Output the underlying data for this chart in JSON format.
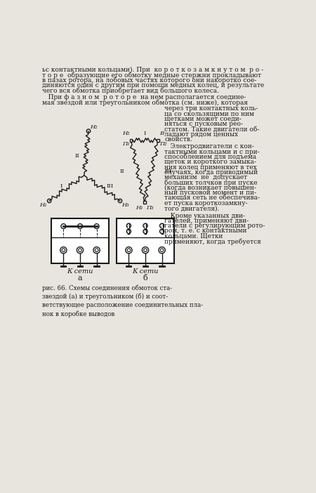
{
  "bg_color": "#e8e4de",
  "line_color": "#1a1a1a",
  "text_color": "#1a1a1a",
  "fig_width": 4.5,
  "fig_height": 7.02,
  "text_lines_top": [
    "ьс контактными кольцами). При  ко р о т к о з а м к н у т о м  р о -",
    "т о р е  образующие его обмотку медные стержни прокладывают",
    "в пазах ротора, на лобовых частях которого они накоротко сое-",
    "диняются один с другим при помощи медных колец, и результате",
    "чего вся обмотка приобретает вид большого колеса."
  ],
  "text_lines_mid1": [
    "   При ф а з н о м  р о т о р е  на нем располагается соедине-",
    "мая звездой или треугольником обмотка (см. ниже), которая"
  ],
  "text_right_col": [
    "через три контактных коль-",
    "ца со скользящими по ним",
    "щетками может соеди-",
    "няться с пусковым рео-",
    "статом. Такие двигатели об-",
    "ладают рядом ценных",
    "свойств."
  ],
  "text_right_col2": [
    "   Электродвигатели с кон-",
    "тактными кольцами и с при-",
    "способлением для подъема",
    "щеток и короткого замыка-",
    "ния колец применяют в тех",
    "случаях, когда приводимый",
    "механизм  не  допускает",
    "больших толчков при пуске",
    "(когда возникает повышен-",
    "ный пусковой момент и пи-",
    "тающая сеть не обеспечива-",
    "ет пуска короткозамкну-",
    "того двигателя)."
  ],
  "text_right_col3": [
    "   Кроме указанных дви-",
    "гателей, применяют дви-",
    "гатели с регулирующим рото-",
    "ром, т. е. с контактными",
    "кольцами. Щетки",
    "применяют, когда требуется"
  ],
  "caption": "рис. 66. Схемы соединения обмоток ста-\nзвездой (а) и треугольником (б) и соот-\nветствующее расположение соединительных пла-\nнок в коробке выводов",
  "label_a": "а",
  "label_b": "б",
  "k_seti": "К сети"
}
